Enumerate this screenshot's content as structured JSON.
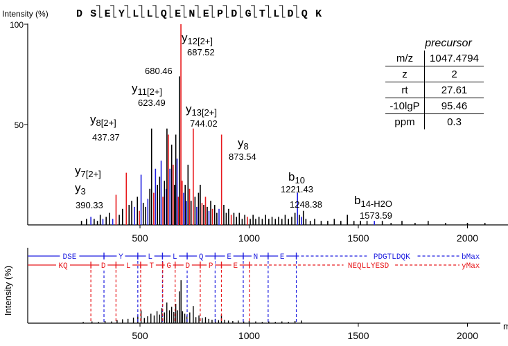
{
  "peptide": [
    "D",
    "S",
    "E",
    "Y",
    "L",
    "L",
    "Q",
    "E",
    "N",
    "E",
    "P",
    "D",
    "G",
    "T",
    "L",
    "D",
    "Q",
    "K"
  ],
  "y_axis_label": "Intensity (%)",
  "bottom_y_axis_label": "Intensity (%)",
  "x_axis_unit_fragment": "m",
  "precursor": {
    "title": "precursor",
    "rows": [
      {
        "key": "m/z",
        "value": "1047.4794"
      },
      {
        "key": "z",
        "value": "2"
      },
      {
        "key": "rt",
        "value": "27.61"
      },
      {
        "key": "-10lgP",
        "value": "95.46"
      },
      {
        "key": "ppm",
        "value": "0.3"
      }
    ]
  },
  "chart_data": [
    {
      "type": "bar",
      "title": "",
      "ylabel": "Intensity (%)",
      "xlim": [
        0,
        2150
      ],
      "ylim": [
        0,
        100
      ],
      "xticks": [
        500,
        1000,
        1500,
        2000
      ],
      "yticks": [
        50,
        100
      ],
      "colors": {
        "y": "#e8191c",
        "b": "#1f1fe0",
        "other": "#000000"
      },
      "annotated_peaks": [
        {
          "mz": 687.52,
          "intensity": 100,
          "ion": "y",
          "name": "y",
          "sub": "12[2+]",
          "mz_label": "687.52"
        },
        {
          "mz": 680.46,
          "intensity": 74,
          "ion": "other",
          "name": "",
          "sub": "",
          "mz_label": "680.46"
        },
        {
          "mz": 623.49,
          "intensity": 48,
          "ion": "other",
          "name": "y",
          "sub": "11[2+]",
          "mz_label": "623.49"
        },
        {
          "mz": 744.02,
          "intensity": 48,
          "ion": "y",
          "name": "y",
          "sub": "13[2+]",
          "mz_label": "744.02"
        },
        {
          "mz": 437.37,
          "intensity": 26,
          "ion": "y",
          "name": "y",
          "sub": "8[2+]",
          "mz_label": "437.37"
        },
        {
          "mz": 873.54,
          "intensity": 45,
          "ion": "y",
          "name": "y",
          "sub": "8",
          "mz_label": "873.54"
        },
        {
          "mz": 390.33,
          "intensity": 15,
          "ion": "y",
          "name": "y",
          "sub": "7[2+]",
          "name2": "y",
          "sub2": "3",
          "mz_label": "390.33"
        },
        {
          "mz": 1221.43,
          "intensity": 16,
          "ion": "b",
          "name": "b",
          "sub": "10",
          "mz_label": "1221.43"
        },
        {
          "mz": 1248.38,
          "intensity": 7,
          "ion": "other",
          "name": "",
          "sub": "",
          "mz_label": "1248.38"
        },
        {
          "mz": 1573.59,
          "intensity": 2,
          "ion": "b",
          "name": "b",
          "sub": "14-H2O",
          "mz_label": "1573.59"
        }
      ],
      "peaks": [
        [
          232,
          2,
          "other"
        ],
        [
          255,
          3,
          "other"
        ],
        [
          275,
          4,
          "b"
        ],
        [
          290,
          3,
          "other"
        ],
        [
          305,
          2,
          "other"
        ],
        [
          318,
          5,
          "other"
        ],
        [
          330,
          3,
          "b"
        ],
        [
          345,
          4,
          "other"
        ],
        [
          360,
          6,
          "other"
        ],
        [
          375,
          3,
          "b"
        ],
        [
          390.33,
          15,
          "y"
        ],
        [
          405,
          5,
          "other"
        ],
        [
          420,
          8,
          "other"
        ],
        [
          437.37,
          26,
          "y"
        ],
        [
          450,
          10,
          "other"
        ],
        [
          462,
          12,
          "other"
        ],
        [
          475,
          9,
          "b"
        ],
        [
          488,
          14,
          "other"
        ],
        [
          497,
          7,
          "y"
        ],
        [
          505,
          25,
          "b"
        ],
        [
          515,
          11,
          "other"
        ],
        [
          526,
          9,
          "other"
        ],
        [
          536,
          13,
          "b"
        ],
        [
          545,
          18,
          "other"
        ],
        [
          553,
          48,
          "other"
        ],
        [
          563,
          16,
          "y"
        ],
        [
          571,
          28,
          "b"
        ],
        [
          580,
          20,
          "other"
        ],
        [
          590,
          24,
          "other"
        ],
        [
          597,
          32,
          "b"
        ],
        [
          605,
          14,
          "y"
        ],
        [
          612,
          22,
          "other"
        ],
        [
          620,
          18,
          "b"
        ],
        [
          623.49,
          48,
          "other"
        ],
        [
          630,
          45,
          "y"
        ],
        [
          637,
          28,
          "b"
        ],
        [
          645,
          40,
          "other"
        ],
        [
          652,
          30,
          "y"
        ],
        [
          658,
          20,
          "other"
        ],
        [
          664,
          45,
          "other"
        ],
        [
          670,
          33,
          "b"
        ],
        [
          676,
          14,
          "y"
        ],
        [
          680.46,
          74,
          "other"
        ],
        [
          687.52,
          100,
          "y"
        ],
        [
          693,
          22,
          "y"
        ],
        [
          700,
          16,
          "b"
        ],
        [
          707,
          20,
          "other"
        ],
        [
          713,
          12,
          "b"
        ],
        [
          720,
          30,
          "other"
        ],
        [
          727,
          18,
          "y"
        ],
        [
          734,
          12,
          "other"
        ],
        [
          744.02,
          48,
          "y"
        ],
        [
          752,
          14,
          "other"
        ],
        [
          760,
          9,
          "b"
        ],
        [
          768,
          16,
          "other"
        ],
        [
          776,
          20,
          "other"
        ],
        [
          784,
          11,
          "y"
        ],
        [
          792,
          10,
          "other"
        ],
        [
          800,
          14,
          "y"
        ],
        [
          808,
          9,
          "other"
        ],
        [
          816,
          7,
          "b"
        ],
        [
          824,
          12,
          "other"
        ],
        [
          832,
          8,
          "y"
        ],
        [
          842,
          10,
          "other"
        ],
        [
          852,
          6,
          "other"
        ],
        [
          862,
          8,
          "b"
        ],
        [
          873.54,
          45,
          "y"
        ],
        [
          884,
          10,
          "other"
        ],
        [
          895,
          6,
          "other"
        ],
        [
          906,
          8,
          "other"
        ],
        [
          918,
          5,
          "y"
        ],
        [
          930,
          6,
          "other"
        ],
        [
          942,
          4,
          "other"
        ],
        [
          955,
          6,
          "other"
        ],
        [
          968,
          3,
          "other"
        ],
        [
          980,
          5,
          "other"
        ],
        [
          992,
          4,
          "y"
        ],
        [
          1005,
          3,
          "other"
        ],
        [
          1018,
          5,
          "other"
        ],
        [
          1030,
          3,
          "other"
        ],
        [
          1045,
          4,
          "other"
        ],
        [
          1060,
          3,
          "other"
        ],
        [
          1075,
          5,
          "other"
        ],
        [
          1090,
          3,
          "other"
        ],
        [
          1105,
          4,
          "other"
        ],
        [
          1120,
          3,
          "other"
        ],
        [
          1135,
          4,
          "other"
        ],
        [
          1150,
          3,
          "other"
        ],
        [
          1165,
          5,
          "other"
        ],
        [
          1180,
          3,
          "other"
        ],
        [
          1195,
          4,
          "other"
        ],
        [
          1210,
          6,
          "other"
        ],
        [
          1221.43,
          16,
          "b"
        ],
        [
          1230,
          5,
          "other"
        ],
        [
          1240,
          4,
          "b"
        ],
        [
          1248.38,
          7,
          "other"
        ],
        [
          1260,
          3,
          "other"
        ],
        [
          1280,
          2,
          "other"
        ],
        [
          1300,
          3,
          "other"
        ],
        [
          1330,
          2,
          "other"
        ],
        [
          1360,
          2,
          "other"
        ],
        [
          1390,
          3,
          "other"
        ],
        [
          1420,
          2,
          "other"
        ],
        [
          1450,
          5,
          "other"
        ],
        [
          1480,
          2,
          "other"
        ],
        [
          1510,
          2,
          "other"
        ],
        [
          1540,
          2,
          "other"
        ],
        [
          1573.59,
          2,
          "b"
        ],
        [
          1610,
          2,
          "other"
        ],
        [
          1650,
          1,
          "other"
        ],
        [
          1700,
          2,
          "other"
        ],
        [
          1760,
          1,
          "other"
        ],
        [
          1820,
          2,
          "other"
        ],
        [
          1900,
          1,
          "other"
        ],
        [
          2000,
          1,
          "other"
        ],
        [
          2080,
          1,
          "other"
        ]
      ]
    },
    {
      "type": "bar",
      "title": "",
      "ylabel": "Intensity (%)",
      "xlim": [
        0,
        2150
      ],
      "xticks": [
        500,
        1000,
        1500,
        2000
      ],
      "ladder": {
        "b_row": {
          "labels": [
            "DSE",
            "Y",
            "L",
            "L",
            "Q",
            "E",
            "N",
            "E"
          ],
          "end_text": "PDGTLDQK",
          "max_label": "bMax",
          "cleavages": [
            20,
            335,
            490,
            603,
            716,
            844,
            973,
            1087,
            1216
          ]
        },
        "y_row": {
          "labels": [
            "KQ",
            "D",
            "L",
            "T",
            "G",
            "D",
            "P",
            "E"
          ],
          "end_text": "NEQLLYESD",
          "max_label": "yMax",
          "cleavages": [
            20,
            275,
            390,
            503,
            604,
            661,
            776,
            873,
            1002
          ]
        }
      },
      "peaks": [
        [
          240,
          3
        ],
        [
          280,
          4
        ],
        [
          310,
          3
        ],
        [
          340,
          5
        ],
        [
          370,
          4
        ],
        [
          395,
          7
        ],
        [
          420,
          9
        ],
        [
          445,
          10
        ],
        [
          470,
          13
        ],
        [
          490,
          18
        ],
        [
          505,
          30
        ],
        [
          520,
          12
        ],
        [
          535,
          16
        ],
        [
          550,
          22
        ],
        [
          565,
          18
        ],
        [
          578,
          28
        ],
        [
          590,
          20
        ],
        [
          600,
          35
        ],
        [
          612,
          25
        ],
        [
          623,
          48
        ],
        [
          635,
          30
        ],
        [
          645,
          38
        ],
        [
          655,
          26
        ],
        [
          664,
          45
        ],
        [
          672,
          30
        ],
        [
          680,
          74
        ],
        [
          688,
          100
        ],
        [
          695,
          28
        ],
        [
          705,
          22
        ],
        [
          715,
          18
        ],
        [
          728,
          25
        ],
        [
          744,
          40
        ],
        [
          756,
          14
        ],
        [
          770,
          18
        ],
        [
          785,
          12
        ],
        [
          800,
          14
        ],
        [
          815,
          10
        ],
        [
          830,
          8
        ],
        [
          845,
          10
        ],
        [
          860,
          7
        ],
        [
          873,
          20
        ],
        [
          888,
          8
        ],
        [
          905,
          6
        ],
        [
          925,
          5
        ],
        [
          950,
          6
        ],
        [
          975,
          4
        ],
        [
          1000,
          5
        ],
        [
          1030,
          4
        ],
        [
          1060,
          3
        ],
        [
          1090,
          4
        ],
        [
          1120,
          3
        ],
        [
          1150,
          4
        ],
        [
          1180,
          3
        ],
        [
          1210,
          5
        ],
        [
          1240,
          6
        ]
      ]
    }
  ]
}
